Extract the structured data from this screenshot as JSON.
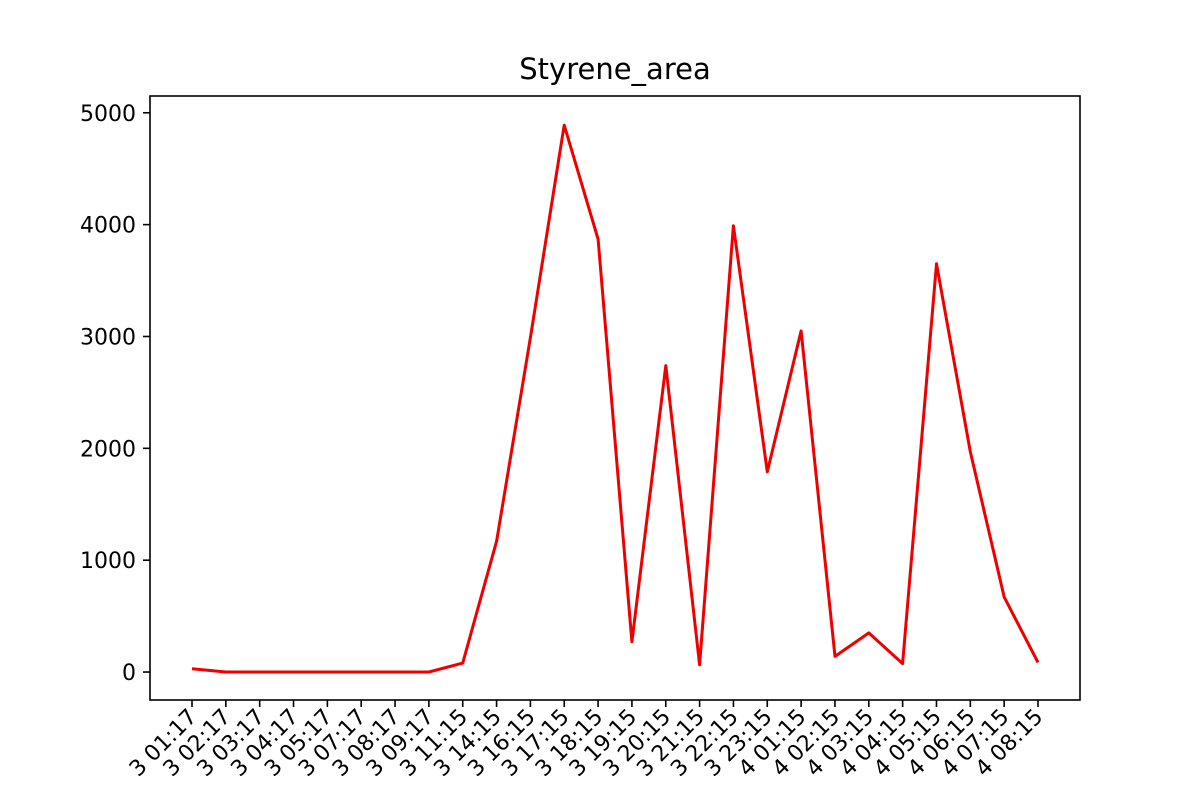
{
  "chart_data": {
    "type": "line",
    "title": "Styrene_area",
    "xlabel": "",
    "ylabel": "",
    "ylim": [
      -250,
      5150
    ],
    "yticks": [
      0,
      1000,
      2000,
      3000,
      4000,
      5000
    ],
    "grid": false,
    "legend": "none",
    "x": [
      "3 01:17",
      "3 02:17",
      "3 03:17",
      "3 04:17",
      "3 05:17",
      "3 07:17",
      "3 08:17",
      "3 09:17",
      "3 11:15",
      "3 14:15",
      "3 16:15",
      "3 17:15",
      "3 18:15",
      "3 19:15",
      "3 20:15",
      "3 21:15",
      "3 22:15",
      "3 23:15",
      "4 01:15",
      "4 02:15",
      "4 03:15",
      "4 04:15",
      "4 05:15",
      "4 06:15",
      "4 07:15",
      "4 08:15"
    ],
    "series": [
      {
        "color": "#ee0000",
        "values": [
          30,
          0,
          0,
          0,
          0,
          0,
          0,
          0,
          80,
          1170,
          2990,
          4890,
          3870,
          270,
          2740,
          65,
          3990,
          1790,
          3050,
          140,
          350,
          75,
          3650,
          1970,
          670,
          85
        ]
      }
    ]
  }
}
